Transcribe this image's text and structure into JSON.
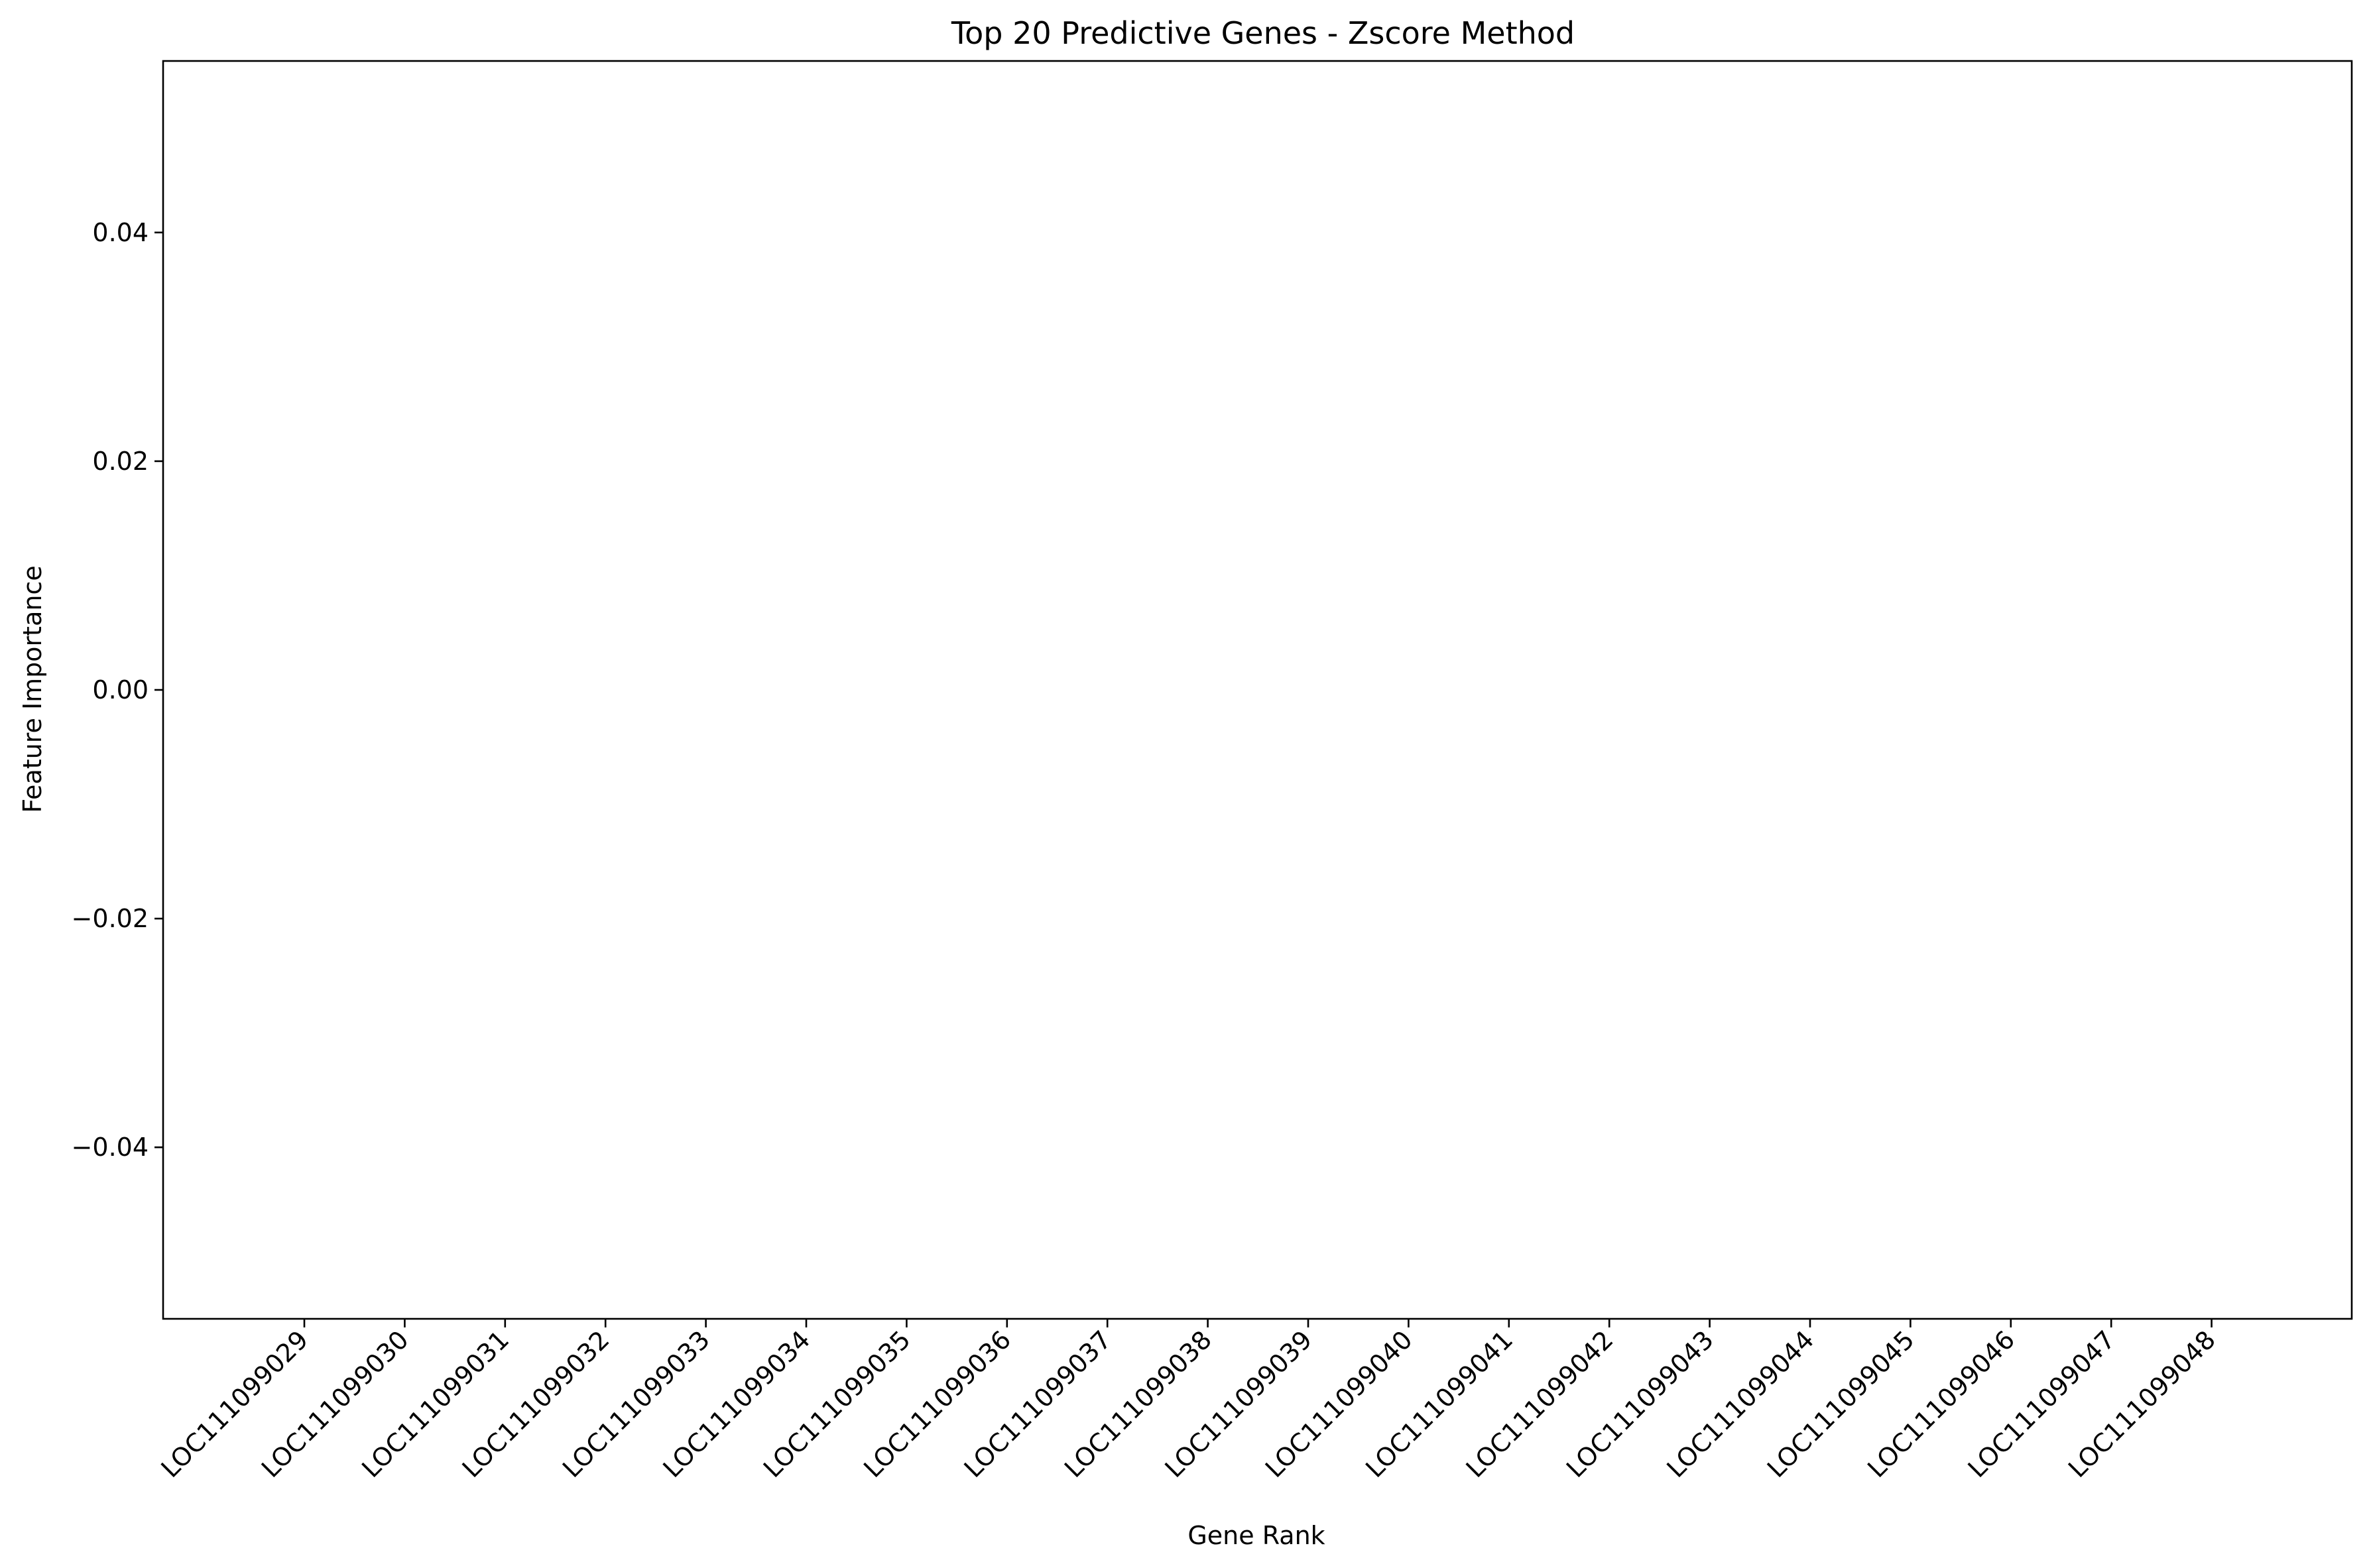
{
  "chart_data": {
    "type": "bar",
    "title": "Top 20 Predictive Genes - Zscore Method",
    "xlabel": "Gene Rank",
    "ylabel": "Feature Importance",
    "categories": [
      "LOC111099029",
      "LOC111099030",
      "LOC111099031",
      "LOC111099032",
      "LOC111099033",
      "LOC111099034",
      "LOC111099035",
      "LOC111099036",
      "LOC111099037",
      "LOC111099038",
      "LOC111099039",
      "LOC111099040",
      "LOC111099041",
      "LOC111099042",
      "LOC111099043",
      "LOC111099044",
      "LOC111099045",
      "LOC111099046",
      "LOC111099047",
      "LOC111099048"
    ],
    "values": [
      0,
      0,
      0,
      0,
      0,
      0,
      0,
      0,
      0,
      0,
      0,
      0,
      0,
      0,
      0,
      0,
      0,
      0,
      0,
      0
    ],
    "ylim": [
      -0.055,
      0.055
    ],
    "yticks": [
      -0.04,
      -0.02,
      0.0,
      0.02,
      0.04
    ],
    "ytick_labels": [
      "−0.04",
      "−0.02",
      "0.00",
      "0.02",
      "0.04"
    ],
    "grid": false,
    "legend": "none",
    "bar_color": "#1f77b4"
  }
}
